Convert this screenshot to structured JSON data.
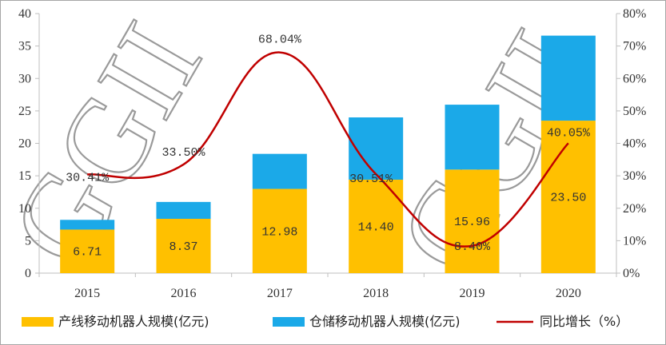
{
  "chart_data": {
    "type": "bar",
    "stacked": true,
    "categories": [
      "2015",
      "2016",
      "2017",
      "2018",
      "2019",
      "2020"
    ],
    "series": [
      {
        "name": "产线移动机器人规模(亿元)",
        "kind": "bar",
        "axis": "left",
        "color": "#FFC000",
        "values": [
          6.71,
          8.37,
          12.98,
          14.4,
          15.96,
          23.5
        ],
        "labels": [
          "6.71",
          "8.37",
          "12.98",
          "14.40",
          "15.96",
          "23.50"
        ]
      },
      {
        "name": "仓储移动机器人规模(亿元)",
        "kind": "bar",
        "axis": "left",
        "color": "#1BA9E8",
        "values": [
          1.5,
          2.6,
          5.4,
          9.6,
          10.0,
          13.1
        ]
      },
      {
        "name": "同比增长（%）",
        "kind": "line",
        "axis": "right",
        "color": "#C00000",
        "smooth": true,
        "values": [
          30.41,
          33.5,
          68.04,
          30.51,
          8.4,
          40.05
        ],
        "labels": [
          "30.41%",
          "33.50%",
          "68.04%",
          "30.51%",
          "8.40%",
          "40.05%"
        ]
      }
    ],
    "y_left": {
      "min": 0,
      "max": 40,
      "step": 5,
      "ticks": [
        "0",
        "5",
        "10",
        "15",
        "20",
        "25",
        "30",
        "35",
        "40"
      ]
    },
    "y_right": {
      "min": 0,
      "max": 80,
      "step": 10,
      "ticks": [
        "0%",
        "10%",
        "20%",
        "30%",
        "40%",
        "50%",
        "60%",
        "70%",
        "80%"
      ]
    },
    "grid": false,
    "legend_position": "bottom",
    "watermark": "GGII"
  }
}
